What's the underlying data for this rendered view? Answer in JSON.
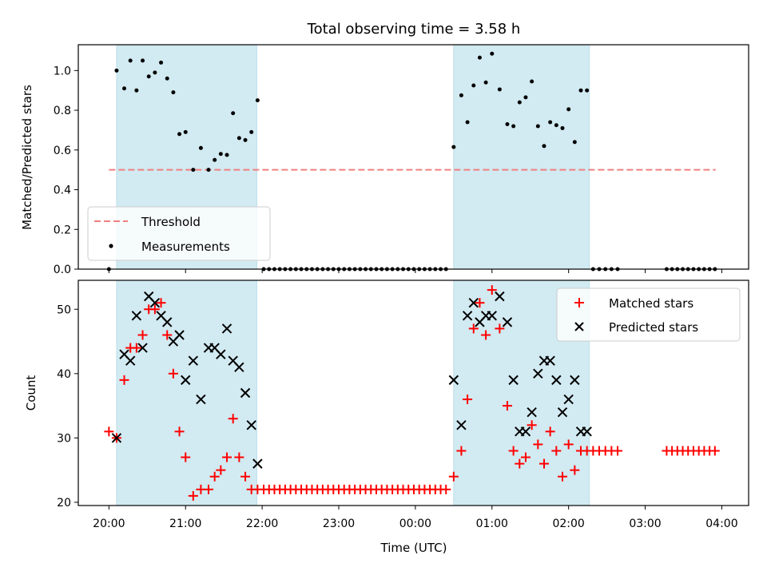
{
  "chart_data": [
    {
      "type": "scatter",
      "title": "Total observing time = 3.58 h",
      "ylabel": "Matched/Predicted stars",
      "ylim": [
        0,
        1.13
      ],
      "yticks": [
        "0.0",
        "0.2",
        "0.4",
        "0.6",
        "0.8",
        "1.0"
      ],
      "ytick_values": [
        0,
        0.2,
        0.4,
        0.6,
        0.8,
        1.0
      ],
      "xlim": [
        -0.4,
        8.35
      ],
      "threshold": {
        "value": 0.5,
        "x_start": 0,
        "x_end": 7.92,
        "color": "#f08080"
      },
      "shaded_intervals": [
        [
          0.1,
          1.93
        ],
        [
          4.5,
          6.27
        ]
      ],
      "shade_color": "#add8e6",
      "legend": {
        "position": "bottom-left",
        "entries": [
          "Threshold",
          "Measurements"
        ]
      },
      "series": [
        {
          "name": "Measurements",
          "color": "#000000",
          "x": [
            0.0,
            0.1,
            0.2,
            0.28,
            0.36,
            0.44,
            0.52,
            0.6,
            0.68,
            0.76,
            0.84,
            0.92,
            1.0,
            1.1,
            1.2,
            1.3,
            1.38,
            1.46,
            1.54,
            1.62,
            1.7,
            1.78,
            1.86,
            1.94,
            2.02,
            2.09,
            2.16,
            2.23,
            2.3,
            2.37,
            2.44,
            2.51,
            2.58,
            2.65,
            2.72,
            2.79,
            2.86,
            2.93,
            3.0,
            3.07,
            3.14,
            3.21,
            3.28,
            3.35,
            3.42,
            3.49,
            3.56,
            3.63,
            3.7,
            3.77,
            3.84,
            3.91,
            3.98,
            4.05,
            4.12,
            4.19,
            4.26,
            4.33,
            4.4,
            4.5,
            4.6,
            4.68,
            4.76,
            4.84,
            4.92,
            5.0,
            5.1,
            5.2,
            5.28,
            5.36,
            5.44,
            5.52,
            5.6,
            5.68,
            5.76,
            5.84,
            5.92,
            6.0,
            6.08,
            6.16,
            6.24,
            6.32,
            6.4,
            6.48,
            6.56,
            6.64,
            7.28,
            7.35,
            7.42,
            7.49,
            7.56,
            7.63,
            7.7,
            7.77,
            7.84,
            7.91
          ],
          "y": [
            0.0,
            1.0,
            0.91,
            1.05,
            0.9,
            1.05,
            0.97,
            0.99,
            1.04,
            0.96,
            0.89,
            0.68,
            0.69,
            0.5,
            0.61,
            0.5,
            0.55,
            0.58,
            0.575,
            0.785,
            0.66,
            0.65,
            0.69,
            0.85,
            0.0,
            0.0,
            0.0,
            0.0,
            0.0,
            0.0,
            0.0,
            0.0,
            0.0,
            0.0,
            0.0,
            0.0,
            0.0,
            0.0,
            0.0,
            0.0,
            0.0,
            0.0,
            0.0,
            0.0,
            0.0,
            0.0,
            0.0,
            0.0,
            0.0,
            0.0,
            0.0,
            0.0,
            0.0,
            0.0,
            0.0,
            0.0,
            0.0,
            0.0,
            0.0,
            0.615,
            0.875,
            0.74,
            0.925,
            1.065,
            0.94,
            1.085,
            0.905,
            0.73,
            0.72,
            0.84,
            0.865,
            0.945,
            0.72,
            0.62,
            0.74,
            0.725,
            0.71,
            0.805,
            0.64,
            0.9,
            0.9,
            0.0,
            0.0,
            0.0,
            0.0,
            0.0,
            0.0,
            0.0,
            0.0,
            0.0,
            0.0,
            0.0,
            0.0,
            0.0,
            0.0,
            0.0
          ]
        }
      ]
    },
    {
      "type": "scatter",
      "xlabel": "Time (UTC)",
      "ylabel": "Count",
      "ylim": [
        19.5,
        54.5
      ],
      "yticks": [
        "20",
        "30",
        "40",
        "50"
      ],
      "ytick_values": [
        20,
        30,
        40,
        50
      ],
      "xlim": [
        -0.4,
        8.35
      ],
      "xticks": [
        "20:00",
        "21:00",
        "22:00",
        "23:00",
        "00:00",
        "01:00",
        "02:00",
        "03:00",
        "04:00"
      ],
      "xtick_values": [
        0,
        1,
        2,
        3,
        4,
        5,
        6,
        7,
        8
      ],
      "shaded_intervals": [
        [
          0.1,
          1.93
        ],
        [
          4.5,
          6.27
        ]
      ],
      "shade_color": "#add8e6",
      "legend": {
        "position": "top-right",
        "entries": [
          "Matched stars",
          "Predicted stars"
        ]
      },
      "series": [
        {
          "name": "Matched stars",
          "marker": "plus",
          "color": "#ff0000",
          "x": [
            0.0,
            0.1,
            0.2,
            0.28,
            0.36,
            0.44,
            0.52,
            0.6,
            0.68,
            0.76,
            0.84,
            0.92,
            1.0,
            1.1,
            1.2,
            1.3,
            1.38,
            1.46,
            1.54,
            1.62,
            1.7,
            1.78,
            1.86,
            1.94,
            2.02,
            2.09,
            2.16,
            2.23,
            2.3,
            2.37,
            2.44,
            2.51,
            2.58,
            2.65,
            2.72,
            2.79,
            2.86,
            2.93,
            3.0,
            3.07,
            3.14,
            3.21,
            3.28,
            3.35,
            3.42,
            3.49,
            3.56,
            3.63,
            3.7,
            3.77,
            3.84,
            3.91,
            3.98,
            4.05,
            4.12,
            4.19,
            4.26,
            4.33,
            4.4,
            4.5,
            4.6,
            4.68,
            4.76,
            4.84,
            4.92,
            5.0,
            5.1,
            5.2,
            5.28,
            5.36,
            5.44,
            5.52,
            5.6,
            5.68,
            5.76,
            5.84,
            5.92,
            6.0,
            6.08,
            6.16,
            6.24,
            6.32,
            6.4,
            6.48,
            6.56,
            6.64,
            7.28,
            7.35,
            7.42,
            7.49,
            7.56,
            7.63,
            7.7,
            7.77,
            7.84,
            7.91
          ],
          "y": [
            31,
            30,
            39,
            44,
            44,
            46,
            50,
            50,
            51,
            46,
            40,
            31,
            27,
            21,
            22,
            22,
            24,
            25,
            27,
            33,
            27,
            24,
            22,
            22,
            22,
            22,
            22,
            22,
            22,
            22,
            22,
            22,
            22,
            22,
            22,
            22,
            22,
            22,
            22,
            22,
            22,
            22,
            22,
            22,
            22,
            22,
            22,
            22,
            22,
            22,
            22,
            22,
            22,
            22,
            22,
            22,
            22,
            22,
            22,
            24,
            28,
            36,
            47,
            51,
            46,
            53,
            47,
            35,
            28,
            26,
            27,
            32,
            29,
            26,
            31,
            28,
            24,
            29,
            25,
            28,
            28,
            28,
            28,
            28,
            28,
            28,
            28,
            28,
            28,
            28,
            28,
            28,
            28,
            28,
            28,
            28
          ]
        },
        {
          "name": "Predicted stars",
          "marker": "x",
          "color": "#000000",
          "x": [
            0.1,
            0.2,
            0.28,
            0.36,
            0.44,
            0.52,
            0.6,
            0.68,
            0.76,
            0.84,
            0.92,
            1.0,
            1.1,
            1.2,
            1.3,
            1.38,
            1.46,
            1.54,
            1.62,
            1.7,
            1.78,
            1.86,
            1.94,
            4.5,
            4.6,
            4.68,
            4.76,
            4.84,
            4.92,
            5.0,
            5.1,
            5.2,
            5.28,
            5.36,
            5.44,
            5.52,
            5.6,
            5.68,
            5.76,
            5.84,
            5.92,
            6.0,
            6.08,
            6.16,
            6.24
          ],
          "y": [
            30,
            43,
            42,
            49,
            44,
            52,
            51,
            49,
            48,
            45,
            46,
            39,
            42,
            36,
            44,
            44,
            43,
            47,
            42,
            41,
            37,
            32,
            26,
            39,
            32,
            49,
            51,
            48,
            49,
            49,
            52,
            48,
            39,
            31,
            31,
            34,
            40,
            42,
            42,
            39,
            34,
            36,
            39,
            31,
            31
          ]
        }
      ]
    }
  ]
}
